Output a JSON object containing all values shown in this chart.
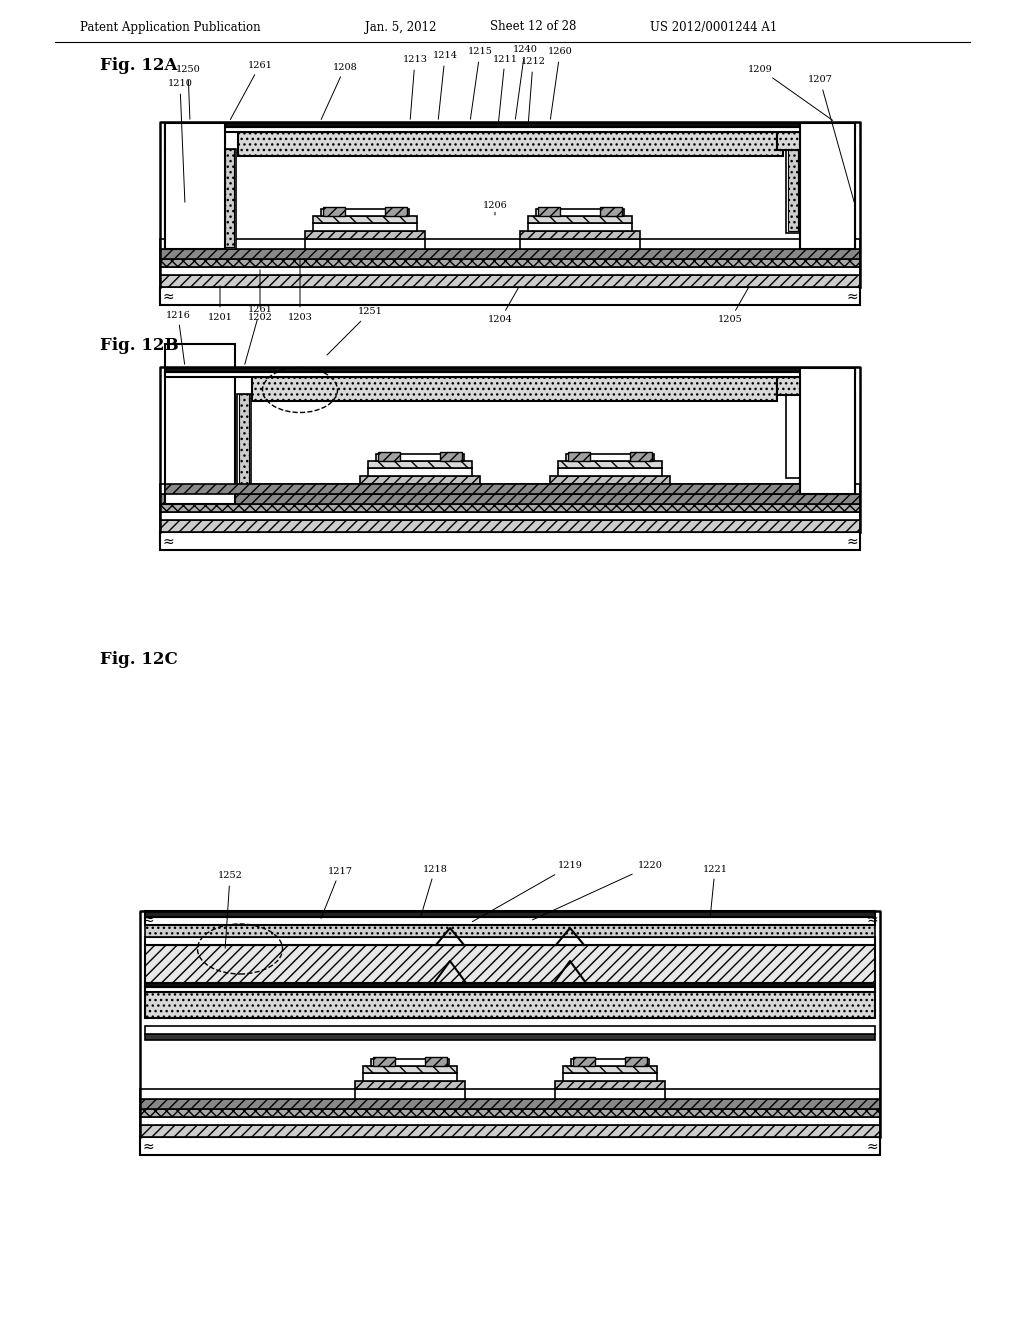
{
  "bg_color": "#ffffff",
  "header_left": "Patent Application Publication",
  "header_mid": "Jan. 5, 2012",
  "header_sheet": "Sheet 12 of 28",
  "header_right": "US 2012/0001244 A1",
  "lc": "#000000"
}
